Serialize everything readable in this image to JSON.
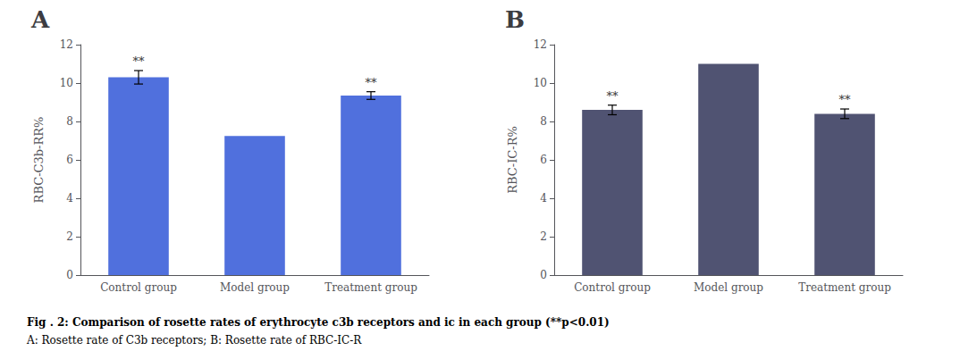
{
  "chart_data": [
    {
      "type": "bar",
      "title": "A",
      "categories": [
        "Control group",
        "Model group",
        "Treatment group"
      ],
      "values": [
        10.3,
        7.25,
        9.35
      ],
      "errors": [
        0.35,
        0.0,
        0.2
      ],
      "ylabel": "RBC-C3b-RR%",
      "ylim": [
        0,
        12
      ],
      "yticks": [
        0,
        2,
        4,
        6,
        8,
        10,
        12
      ],
      "grid": false,
      "annotations": [
        {
          "category": "Control group",
          "text": "**"
        },
        {
          "category": "Treatment group",
          "text": "**"
        }
      ]
    },
    {
      "type": "bar",
      "title": "B",
      "categories": [
        "Control group",
        "Model group",
        "Treatment group"
      ],
      "values": [
        8.6,
        11.0,
        8.4
      ],
      "errors": [
        0.25,
        0.0,
        0.25
      ],
      "ylabel": "RBC-IC-R%",
      "ylim": [
        0,
        12
      ],
      "yticks": [
        0,
        2,
        4,
        6,
        8,
        10,
        12
      ],
      "grid": false,
      "annotations": [
        {
          "category": "Control group",
          "text": "**"
        },
        {
          "category": "Treatment group",
          "text": "**"
        }
      ]
    }
  ],
  "caption": [
    "Fig . 2: Comparison of rosette rates of erythrocyte c3b receptors and ic in each group (**p<0.01)",
    "A: Rosette rate of C3b receptors; B: Rosette rate of RBC-IC-R"
  ]
}
